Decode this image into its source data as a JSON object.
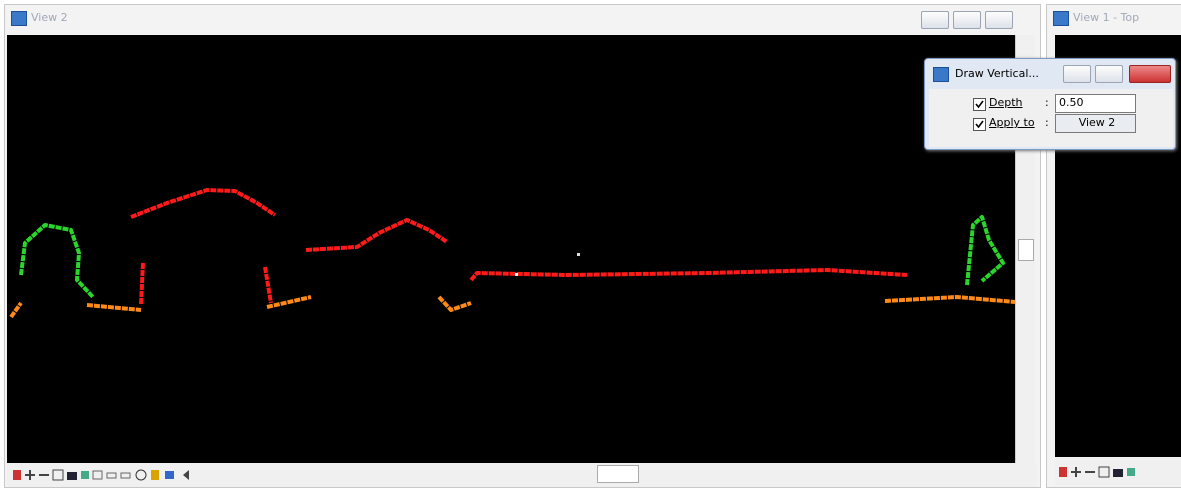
{
  "windows": [
    {
      "title": "View 2"
    },
    {
      "title": "View 1 - Top"
    }
  ],
  "dialog": {
    "title": "Draw Vertical...",
    "fields": [
      {
        "label": "Depth",
        "separator": ":",
        "value": "0.50",
        "checked": true
      },
      {
        "label": "Apply to",
        "separator": ":",
        "value": "View 2",
        "checked": true
      }
    ]
  }
}
